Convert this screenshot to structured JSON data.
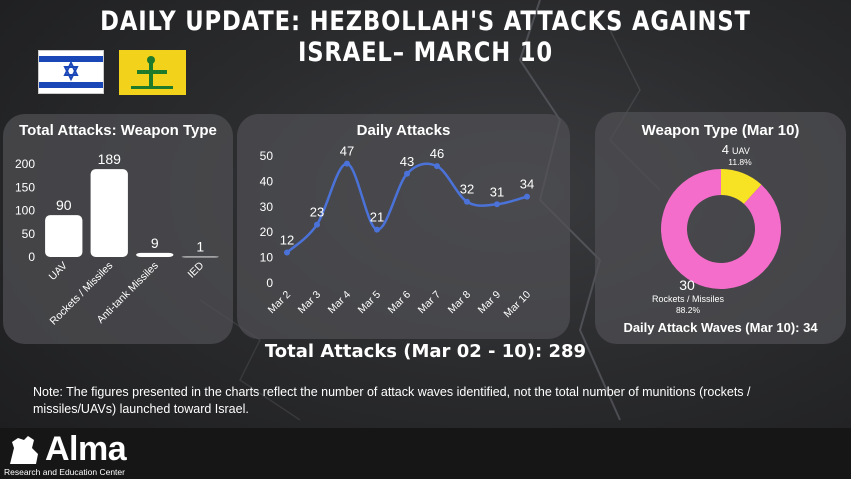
{
  "title": "DAILY UPDATE: HEZBOLLAH'S ATTACKS AGAINST ISRAEL– MARCH 10",
  "total_attacks": "Total Attacks (Mar 02 - 10): 289",
  "note": "Note: The figures presented in the charts reflect the number of attack waves identified, not the total number of munitions (rockets / missiles/UAVs) launched toward Israel.",
  "logo": {
    "word": "Alma",
    "subtitle": "Research and Education Center"
  },
  "waves_text": "Daily Attack Waves (Mar 10): 34",
  "colors": {
    "bar": "#ffffff",
    "line": "#4a72d8",
    "pie_rockets": "#f46dcb",
    "pie_uav": "#f7e224",
    "panel": "#505054"
  },
  "chart_data": [
    {
      "type": "bar",
      "title": "Total Attacks: Weapon Type",
      "categories": [
        "UAV",
        "Rockets / Missiles",
        "Anti-tank Missiles",
        "IED"
      ],
      "values": [
        90,
        189,
        9,
        1
      ],
      "yticks": [
        0,
        50,
        100,
        150,
        200
      ],
      "ylim": [
        0,
        200
      ],
      "grid": false
    },
    {
      "type": "line",
      "title": "Daily Attacks",
      "categories": [
        "Mar 2",
        "Mar 3",
        "Mar 4",
        "Mar 5",
        "Mar 6",
        "Mar 7",
        "Mar 8",
        "Mar 9",
        "Mar 10"
      ],
      "values": [
        12,
        23,
        47,
        21,
        43,
        46,
        32,
        31,
        34
      ],
      "yticks": [
        0,
        10,
        20,
        30,
        40,
        50
      ],
      "ylim": [
        0,
        50
      ],
      "grid": false
    },
    {
      "type": "pie",
      "title": "Weapon Type (Mar 10)",
      "slices": [
        {
          "label": "Rockets / Missiles",
          "value": 30,
          "percent": "88.2%"
        },
        {
          "label": "UAV",
          "value": 4,
          "percent": "11.8%"
        }
      ]
    }
  ]
}
